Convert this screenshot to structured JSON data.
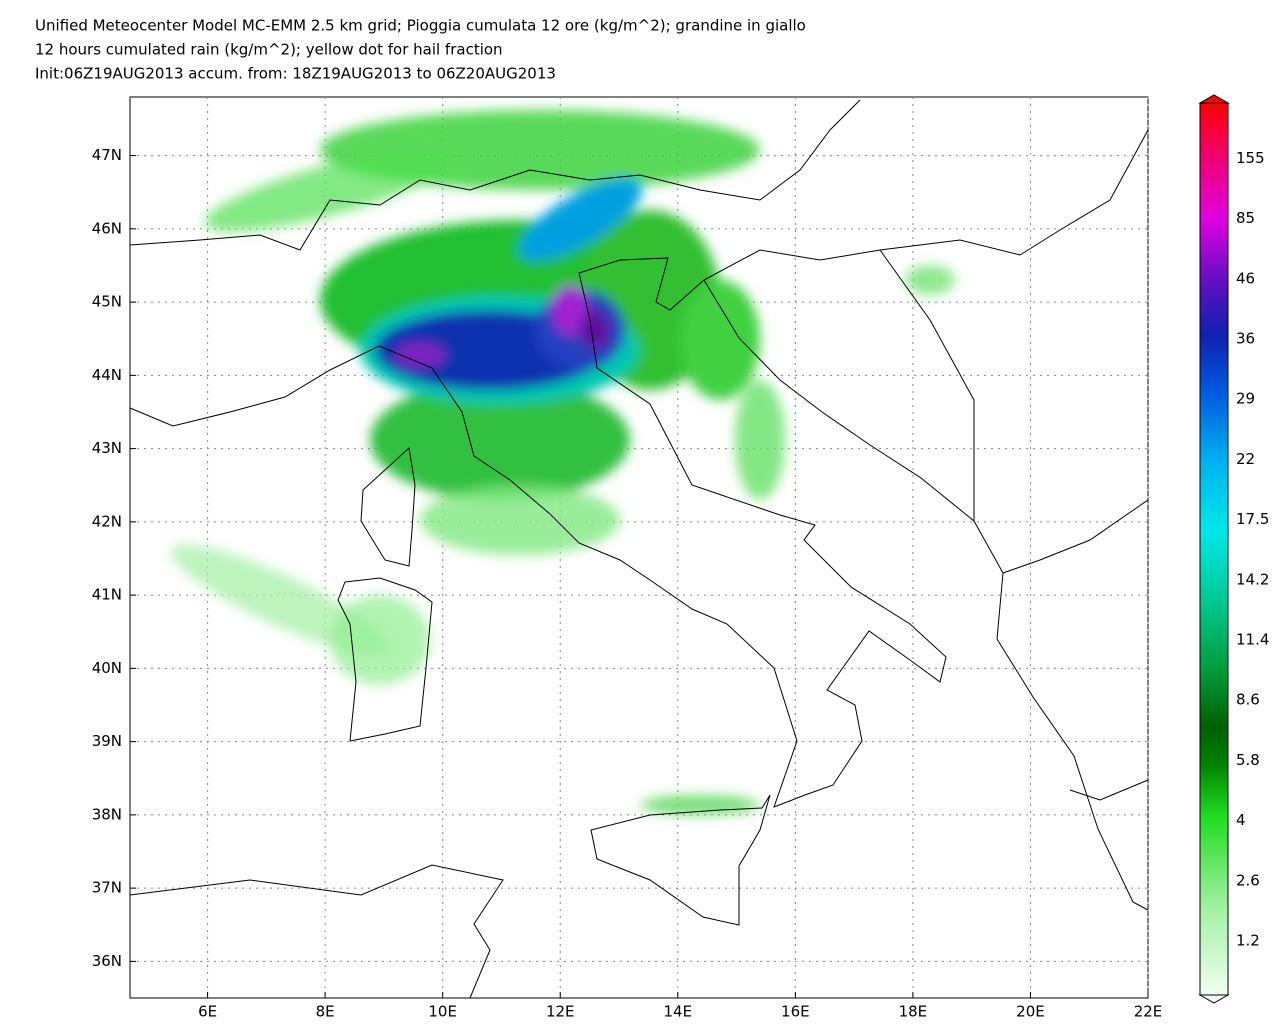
{
  "header": {
    "lines": [
      "Unified Meteocenter Model MC-EMM 2.5 km grid; Pioggia cumulata 12 ore (kg/m^2); grandine in giallo",
      "12 hours cumulated rain (kg/m^2); yellow dot for hail fraction",
      "Init:06Z19AUG2013 accum. from: 18Z19AUG2013 to 06Z20AUG2013"
    ]
  },
  "map": {
    "xlim": [
      4.68,
      22
    ],
    "ylim": [
      35.5,
      47.8
    ],
    "xticks": [
      {
        "value": 6,
        "label": "6E"
      },
      {
        "value": 8,
        "label": "8E"
      },
      {
        "value": 10,
        "label": "10E"
      },
      {
        "value": 12,
        "label": "12E"
      },
      {
        "value": 14,
        "label": "14E"
      },
      {
        "value": 16,
        "label": "16E"
      },
      {
        "value": 18,
        "label": "18E"
      },
      {
        "value": 20,
        "label": "20E"
      },
      {
        "value": 22,
        "label": "22E"
      }
    ],
    "yticks": [
      {
        "value": 36,
        "label": "36N"
      },
      {
        "value": 37,
        "label": "37N"
      },
      {
        "value": 38,
        "label": "38N"
      },
      {
        "value": 39,
        "label": "39N"
      },
      {
        "value": 40,
        "label": "40N"
      },
      {
        "value": 41,
        "label": "41N"
      },
      {
        "value": 42,
        "label": "42N"
      },
      {
        "value": 43,
        "label": "43N"
      },
      {
        "value": 44,
        "label": "44N"
      },
      {
        "value": 45,
        "label": "45N"
      },
      {
        "value": 46,
        "label": "46N"
      },
      {
        "value": 47,
        "label": "47N"
      }
    ],
    "grid": true
  },
  "colorbar": {
    "labels": [
      1.2,
      2.6,
      4,
      5.8,
      8.6,
      11.4,
      14.2,
      17.5,
      22,
      29,
      36,
      46,
      85,
      155
    ]
  }
}
